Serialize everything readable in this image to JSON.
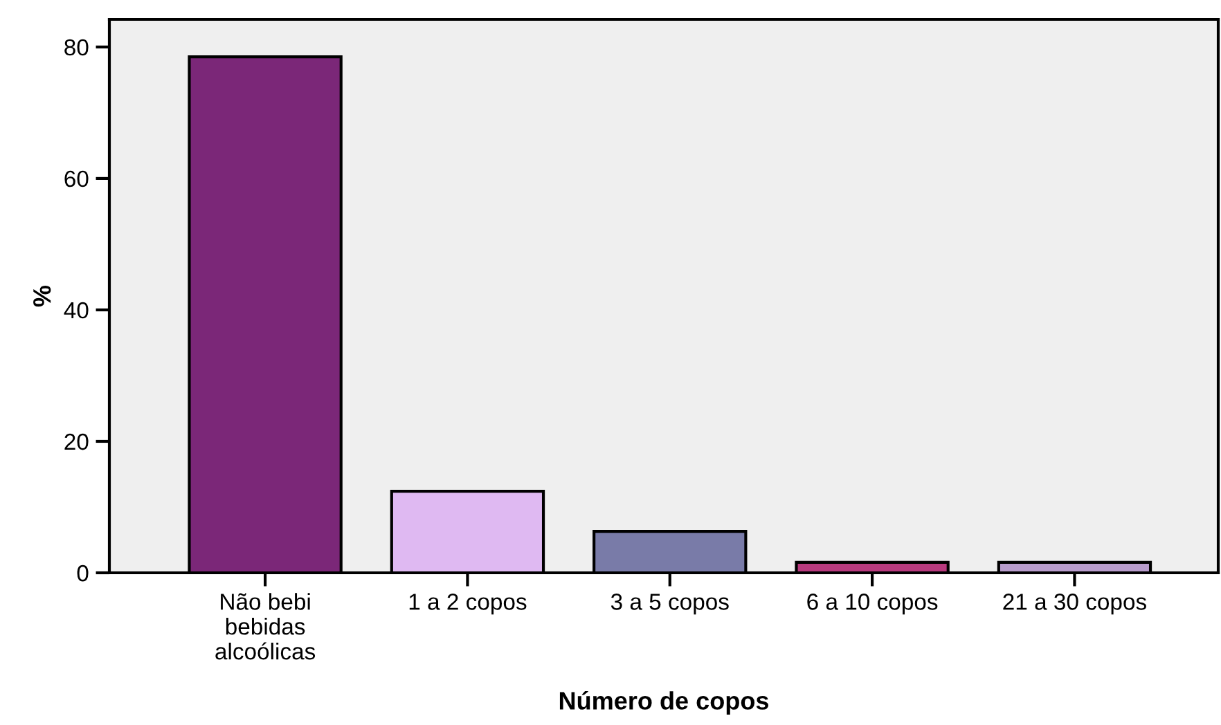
{
  "chart_data": {
    "type": "bar",
    "xlabel": "Número de copos",
    "ylabel": "%",
    "categories": [
      "Não bebi\nbebidas\nalcoólicas",
      "1 a 2 copos",
      "3 a 5 copos",
      "6 a 10 copos",
      "21 a 30 copos"
    ],
    "values": [
      78.5,
      12.4,
      6.3,
      1.6,
      1.6
    ],
    "colors": [
      "#7b2778",
      "#dfb9f2",
      "#797ba8",
      "#b83a7e",
      "#b89ccc"
    ],
    "ylim": [
      0,
      84.2
    ],
    "yticks": [
      0,
      20,
      40,
      60,
      80
    ],
    "grid": false
  }
}
